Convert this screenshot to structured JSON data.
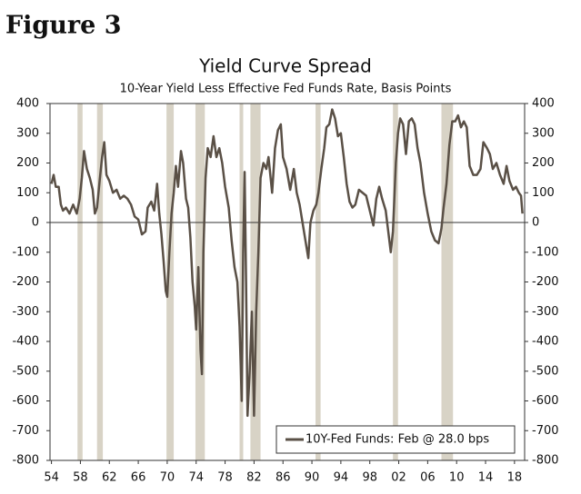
{
  "header": "Figure 3",
  "chart_data": {
    "type": "line",
    "title": "Yield Curve Spread",
    "subtitle": "10-Year Yield Less Effective Fed Funds Rate, Basis Points",
    "x": [
      1954.0,
      1954.3,
      1954.6,
      1955.0,
      1955.3,
      1955.6,
      1956.0,
      1956.5,
      1957.0,
      1957.5,
      1957.9,
      1958.2,
      1958.5,
      1958.9,
      1959.3,
      1959.7,
      1960.0,
      1960.3,
      1960.7,
      1961.0,
      1961.3,
      1961.6,
      1962.0,
      1962.5,
      1963.0,
      1963.5,
      1964.0,
      1964.5,
      1965.0,
      1965.5,
      1966.0,
      1966.5,
      1967.0,
      1967.3,
      1967.8,
      1968.2,
      1968.6,
      1968.9,
      1969.2,
      1969.5,
      1969.8,
      1970.0,
      1970.3,
      1970.6,
      1970.9,
      1971.2,
      1971.5,
      1971.9,
      1972.2,
      1972.6,
      1972.9,
      1973.2,
      1973.5,
      1973.8,
      1974.0,
      1974.3,
      1974.6,
      1974.8,
      1975.0,
      1975.3,
      1975.6,
      1976.0,
      1976.4,
      1976.8,
      1977.2,
      1977.6,
      1978.0,
      1978.5,
      1978.9,
      1979.3,
      1979.7,
      1980.0,
      1980.3,
      1980.5,
      1980.7,
      1980.9,
      1981.1,
      1981.4,
      1981.7,
      1982.0,
      1982.3,
      1982.6,
      1982.9,
      1983.3,
      1983.7,
      1984.0,
      1984.5,
      1984.9,
      1985.3,
      1985.7,
      1986.0,
      1986.5,
      1987.0,
      1987.5,
      1987.9,
      1988.3,
      1988.7,
      1989.1,
      1989.5,
      1989.8,
      1990.2,
      1990.6,
      1990.9,
      1991.3,
      1991.7,
      1992.0,
      1992.4,
      1992.8,
      1993.2,
      1993.6,
      1994.0,
      1994.4,
      1994.8,
      1995.2,
      1995.6,
      1996.0,
      1996.5,
      1997.0,
      1997.5,
      1998.0,
      1998.5,
      1998.9,
      1999.3,
      1999.7,
      2000.2,
      2000.5,
      2000.9,
      2001.2,
      2001.6,
      2001.9,
      2002.2,
      2002.6,
      2003.0,
      2003.4,
      2003.8,
      2004.2,
      2004.6,
      2005.0,
      2005.5,
      2006.0,
      2006.5,
      2007.0,
      2007.5,
      2007.9,
      2008.2,
      2008.6,
      2009.0,
      2009.4,
      2009.8,
      2010.2,
      2010.6,
      2011.0,
      2011.4,
      2011.8,
      2012.3,
      2012.8,
      2013.3,
      2013.7,
      2014.2,
      2014.6,
      2015.0,
      2015.5,
      2016.0,
      2016.5,
      2016.9,
      2017.3,
      2017.8,
      2018.2,
      2018.6,
      2018.9,
      2019.1
    ],
    "series": [
      {
        "name": "10Y-Fed Funds: Feb @ 28.0 bps",
        "color": "#5a5046",
        "values": [
          130,
          160,
          120,
          120,
          60,
          40,
          50,
          30,
          60,
          30,
          80,
          150,
          240,
          180,
          150,
          110,
          30,
          50,
          150,
          220,
          270,
          160,
          140,
          100,
          110,
          80,
          90,
          80,
          60,
          20,
          10,
          -40,
          -30,
          50,
          70,
          40,
          130,
          30,
          -40,
          -130,
          -230,
          -250,
          -100,
          30,
          100,
          190,
          120,
          240,
          200,
          80,
          50,
          -50,
          -200,
          -280,
          -360,
          -150,
          -430,
          -510,
          -100,
          150,
          250,
          220,
          290,
          220,
          250,
          200,
          120,
          50,
          -60,
          -150,
          -200,
          -350,
          -600,
          -100,
          170,
          -200,
          -650,
          -500,
          -300,
          -650,
          -300,
          -100,
          150,
          200,
          180,
          220,
          100,
          250,
          310,
          330,
          220,
          180,
          110,
          180,
          100,
          60,
          0,
          -60,
          -120,
          0,
          40,
          60,
          100,
          180,
          250,
          320,
          330,
          380,
          350,
          290,
          300,
          220,
          130,
          70,
          50,
          60,
          110,
          100,
          90,
          40,
          -10,
          80,
          120,
          80,
          40,
          -20,
          -100,
          -30,
          200,
          300,
          350,
          330,
          230,
          340,
          350,
          330,
          250,
          200,
          100,
          30,
          -30,
          -60,
          -70,
          -20,
          50,
          130,
          260,
          340,
          340,
          360,
          320,
          340,
          320,
          190,
          160,
          160,
          180,
          270,
          250,
          230,
          180,
          200,
          160,
          130,
          190,
          140,
          110,
          120,
          100,
          90,
          30
        ]
      }
    ],
    "recessions": [
      [
        1957.6,
        1958.3
      ],
      [
        1960.3,
        1961.1
      ],
      [
        1969.9,
        1970.9
      ],
      [
        1973.9,
        1975.2
      ],
      [
        1980.0,
        1980.5
      ],
      [
        1981.5,
        1982.9
      ],
      [
        1990.5,
        1991.2
      ],
      [
        2001.2,
        2001.9
      ],
      [
        2007.9,
        2009.5
      ]
    ],
    "recession_color": "#d8d3c6",
    "xlim": [
      1953.8,
      2019.4
    ],
    "xticks": [
      {
        "value": 1954,
        "label": "54"
      },
      {
        "value": 1958,
        "label": "58"
      },
      {
        "value": 1962,
        "label": "62"
      },
      {
        "value": 1966,
        "label": "66"
      },
      {
        "value": 1970,
        "label": "70"
      },
      {
        "value": 1974,
        "label": "74"
      },
      {
        "value": 1978,
        "label": "78"
      },
      {
        "value": 1982,
        "label": "82"
      },
      {
        "value": 1986,
        "label": "86"
      },
      {
        "value": 1990,
        "label": "90"
      },
      {
        "value": 1994,
        "label": "94"
      },
      {
        "value": 1998,
        "label": "98"
      },
      {
        "value": 2002,
        "label": "02"
      },
      {
        "value": 2006,
        "label": "06"
      },
      {
        "value": 2010,
        "label": "10"
      },
      {
        "value": 2014,
        "label": "14"
      },
      {
        "value": 2018,
        "label": "18"
      }
    ],
    "ylim": [
      -800,
      400
    ],
    "yticks": [
      -800,
      -700,
      -600,
      -500,
      -400,
      -300,
      -200,
      -100,
      0,
      100,
      200,
      300,
      400
    ],
    "y2lim": [
      -800,
      400
    ],
    "y2ticks": [
      -800,
      -700,
      -600,
      -500,
      -400,
      -300,
      -200,
      -100,
      0,
      100,
      200,
      300,
      400
    ],
    "legend": "lower right"
  }
}
